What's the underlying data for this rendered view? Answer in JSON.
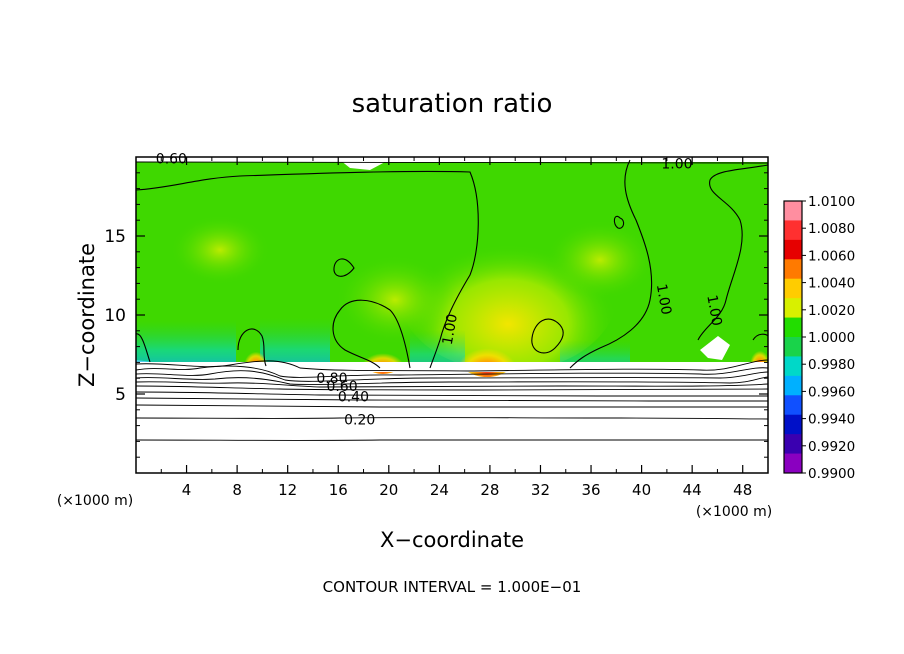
{
  "chart_data": {
    "type": "heatmap",
    "title": "saturation ratio",
    "xlabel": "X−coordinate",
    "ylabel": "Z−coordinate",
    "x_unit_left": "(×1000 m)",
    "x_unit_right": "(×1000 m)",
    "xlim": [
      0,
      50
    ],
    "ylim": [
      0,
      20
    ],
    "x_ticks": [
      4,
      8,
      12,
      16,
      20,
      24,
      28,
      32,
      36,
      40,
      44,
      48
    ],
    "y_ticks": [
      5,
      10,
      15
    ],
    "footer": "CONTOUR INTERVAL = 1.000E−01",
    "colorbar": {
      "ticks": [
        "1.0100",
        "1.0080",
        "1.0060",
        "1.0040",
        "1.0020",
        "1.0000",
        "0.9980",
        "0.9960",
        "0.9940",
        "0.9920",
        "0.9900"
      ],
      "colors": [
        "#ff8ea0",
        "#ff3030",
        "#e60000",
        "#ff7a00",
        "#ffcc00",
        "#d8f000",
        "#22dd00",
        "#19d34a",
        "#00d8c8",
        "#00b0ff",
        "#1050ff",
        "#0010c8",
        "#3a00b0",
        "#8a00c0"
      ]
    },
    "contour_labels": [
      {
        "text": "0.60",
        "x": 2.8,
        "y": 19.9
      },
      {
        "text": "1.00",
        "x": 42.8,
        "y": 19.6
      },
      {
        "text": "1.00",
        "x": 24.8,
        "y": 9.1
      },
      {
        "text": "1.00",
        "x": 41.8,
        "y": 11.0
      },
      {
        "text": "1.00",
        "x": 45.8,
        "y": 10.3
      },
      {
        "text": "0.80",
        "x": 15.5,
        "y": 6.0
      },
      {
        "text": "0.60",
        "x": 16.3,
        "y": 5.5
      },
      {
        "text": "0.40",
        "x": 17.2,
        "y": 4.85
      },
      {
        "text": "0.20",
        "x": 17.7,
        "y": 3.4
      }
    ]
  }
}
